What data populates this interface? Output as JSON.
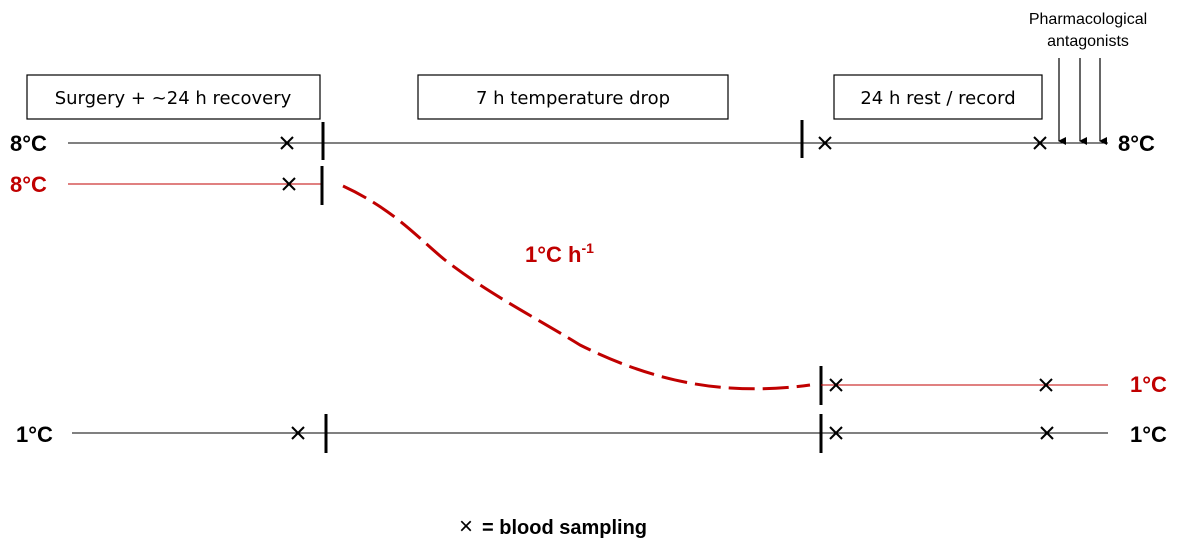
{
  "phases": {
    "surgery": "Surgery + ~24 h recovery",
    "temperature_drop": "7 h temperature drop",
    "rest": "24 h rest / record"
  },
  "annotation": {
    "line1": "Pharmacological",
    "line2": "antagonists"
  },
  "rows": {
    "control_8": {
      "left": "8°C",
      "right": "8°C",
      "color": "#000000"
    },
    "cooled": {
      "left": "8°C",
      "right": "1°C",
      "color": "#c00000"
    },
    "control_1": {
      "left": "1°C",
      "right": "1°C",
      "color": "#000000"
    }
  },
  "rate": {
    "text": "1°C h",
    "sup": "-1"
  },
  "legend": {
    "symbol": "×",
    "text": "= blood sampling"
  }
}
